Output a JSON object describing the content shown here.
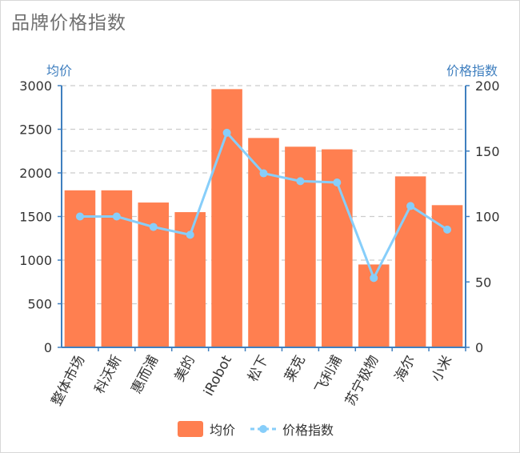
{
  "title": "品牌价格指数",
  "chart_data": {
    "type": "bar",
    "categories": [
      "整体市场",
      "科沃斯",
      "惠而浦",
      "美的",
      "iRobot",
      "松下",
      "莱克",
      "飞利浦",
      "苏宁极物",
      "海尔",
      "小米"
    ],
    "series": [
      {
        "name": "均价",
        "type": "bar",
        "axis": "left",
        "values": [
          1800,
          1800,
          1660,
          1550,
          2960,
          2400,
          2300,
          2270,
          950,
          1960,
          1630
        ]
      },
      {
        "name": "价格指数",
        "type": "line",
        "axis": "right",
        "values": [
          100,
          100,
          92,
          86,
          164,
          133,
          127,
          126,
          53,
          108,
          90
        ]
      }
    ],
    "ylabel_left": "均价",
    "ylabel_right": "价格指数",
    "ylim_left": [
      0,
      3000
    ],
    "ylim_right": [
      0,
      200
    ],
    "yticks_left": [
      "0",
      "500",
      "1000",
      "1500",
      "2000",
      "2500",
      "3000"
    ],
    "yticks_right": [
      "0",
      "50",
      "100",
      "150",
      "200"
    ],
    "grid": true,
    "legend": "bottom",
    "colors": {
      "bar": "#ff7f50",
      "line": "#87cefa",
      "axis": "#3f7fbf"
    }
  }
}
